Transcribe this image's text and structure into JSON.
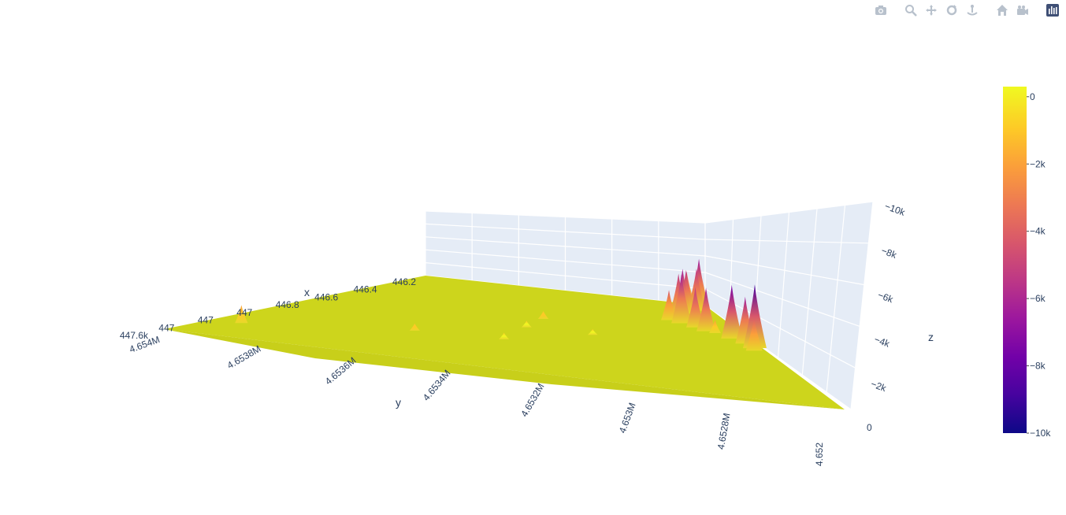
{
  "modebar": {
    "buttons": [
      "camera-icon",
      "zoom-icon",
      "pan-icon",
      "orbit-icon",
      "turntable-icon",
      "home-icon",
      "camera-view-icon",
      "plotly-logo-icon"
    ]
  },
  "chart_data": {
    "type": "surface",
    "colorscale": "plasma",
    "colors": [
      "#0d0887",
      "#46039f",
      "#7201a8",
      "#9c179e",
      "#bd3786",
      "#d8576b",
      "#ed7953",
      "#fb9f3a",
      "#fdca26",
      "#f0f921"
    ],
    "scene_background": "#e5ecf6",
    "x": {
      "title": "x",
      "ticks": [
        "447.6k",
        "447",
        "447",
        "447",
        "446.8",
        "446.6",
        "446.4",
        "446.2"
      ],
      "range": [
        446.2,
        447.6
      ]
    },
    "y": {
      "title": "y",
      "ticks": [
        "4.654M",
        "4.6538M",
        "4.6536M",
        "4.6534M",
        "4.6532M",
        "4.653M",
        "4.6528M",
        "4.652"
      ],
      "range": [
        4.6527,
        4.654
      ]
    },
    "z": {
      "title": "z",
      "ticks": [
        "0",
        "−2k",
        "−4k",
        "−6k",
        "−8k",
        "−10k"
      ],
      "values": [
        0,
        -2000,
        -4000,
        -6000,
        -8000,
        -10000
      ],
      "range": [
        0,
        -10000
      ],
      "reversed": true
    },
    "colorbar": {
      "ticks": [
        "0",
        "−2k",
        "−4k",
        "−6k",
        "−8k",
        "−10k"
      ],
      "values": [
        0,
        -2000,
        -4000,
        -6000,
        -8000,
        -10000
      ],
      "range": [
        -10000,
        300
      ]
    },
    "peaks": [
      {
        "u": 0.05,
        "v": 0.18,
        "z": -2200
      },
      {
        "u": 0.3,
        "v": 0.33,
        "z": -600
      },
      {
        "u": 0.46,
        "v": 0.35,
        "z": -500
      },
      {
        "u": 0.48,
        "v": 0.52,
        "z": -500
      },
      {
        "u": 0.5,
        "v": 0.64,
        "z": -700
      },
      {
        "u": 0.62,
        "v": 0.52,
        "z": -400
      },
      {
        "u": 0.86,
        "v": 0.8,
        "z": -2600
      },
      {
        "u": 0.92,
        "v": 0.7,
        "z": -1500
      },
      {
        "u": 0.97,
        "v": 0.55,
        "z": -4500
      },
      {
        "u": 0.98,
        "v": 0.58,
        "z": -9000
      },
      {
        "u": 0.97,
        "v": 0.62,
        "z": -6500
      },
      {
        "u": 0.95,
        "v": 0.66,
        "z": -7500
      },
      {
        "u": 0.9,
        "v": 0.71,
        "z": -6000
      },
      {
        "u": 0.88,
        "v": 0.74,
        "z": -5500
      },
      {
        "u": 0.85,
        "v": 0.77,
        "z": -6800
      },
      {
        "u": 0.82,
        "v": 0.79,
        "z": -4000
      },
      {
        "u": 0.86,
        "v": 0.85,
        "z": -5800
      },
      {
        "u": 0.88,
        "v": 0.88,
        "z": -6200
      },
      {
        "u": 0.9,
        "v": 0.91,
        "z": -5700
      },
      {
        "u": 0.94,
        "v": 0.93,
        "z": -5800
      },
      {
        "u": 0.96,
        "v": 0.96,
        "z": -6900
      },
      {
        "u": 0.93,
        "v": 0.99,
        "z": -4400
      }
    ]
  }
}
